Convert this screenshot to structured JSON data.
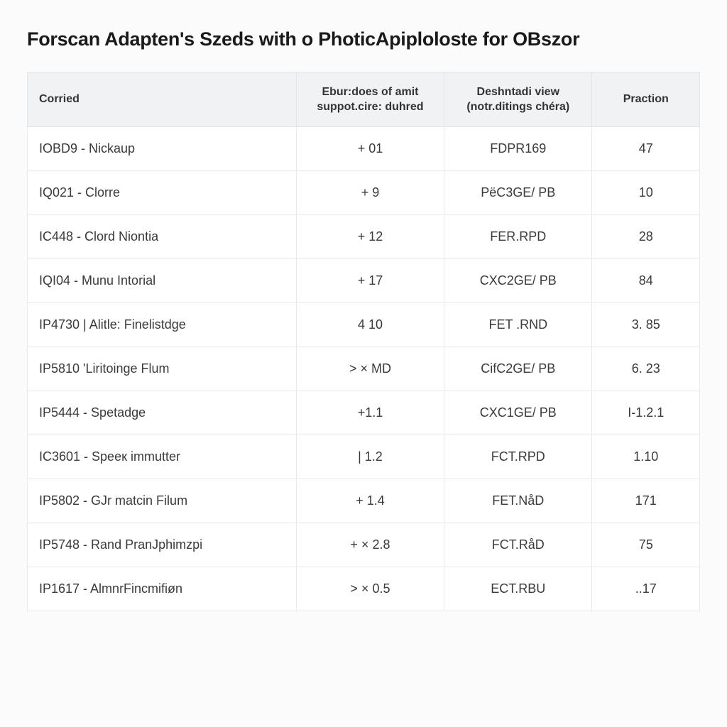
{
  "title": "Forscan Adapten's Szeds with o PhoticApiploloste for OBszor",
  "table": {
    "type": "table",
    "background_color": "#ffffff",
    "header_bg": "#f1f2f3",
    "border_color": "#e8eaec",
    "header_border_color": "#e2e4e6",
    "text_color": "#3a3a3a",
    "header_text_color": "#333333",
    "title_fontsize": 27,
    "header_fontsize": 16,
    "cell_fontsize": 18,
    "column_widths_pct": [
      40,
      22,
      22,
      16
    ],
    "column_alignment": [
      "left",
      "center",
      "center",
      "center"
    ],
    "columns": [
      {
        "label_line1": "Corried",
        "label_line2": ""
      },
      {
        "label_line1": "Ebur:does of amit",
        "label_line2": "suppot.cire: duhred"
      },
      {
        "label_line1": "Deshntadi view",
        "label_line2": "(notr.ditings chéra)"
      },
      {
        "label_line1": "Praction",
        "label_line2": ""
      }
    ],
    "rows": [
      {
        "c1": "IOBD9 - Nickaup",
        "c2": "+ 01",
        "c3": "FDPR169",
        "c4": "47"
      },
      {
        "c1": "IQ021 - Clorre",
        "c2": "+ 9",
        "c3": "PëC3GE/ PB",
        "c4": "10"
      },
      {
        "c1": "IC448 - Clord Niontia",
        "c2": "+ 12",
        "c3": "FER.RPD",
        "c4": "28"
      },
      {
        "c1": "IQI04 - Munu Intorial",
        "c2": "+ 17",
        "c3": "CXC2GE/ PB",
        "c4": "84"
      },
      {
        "c1": "IP4730 | Alitle: Finelistdge",
        "c2": "4 10",
        "c3": "FET .RND",
        "c4": "3. 85"
      },
      {
        "c1": "IP5810 'Liritoinge Flum",
        "c2": "> × MD",
        "c3": "CifC2GE/ PB",
        "c4": "6. 23"
      },
      {
        "c1": "IP5444 - Spetadge",
        "c2": "+1.1",
        "c3": "CXC1GE/ PB",
        "c4": "I-1.2.1"
      },
      {
        "c1": "IC3601 - Speeк immutter",
        "c2": "| 1.2",
        "c3": "FCT.RPD",
        "c4": "1.10"
      },
      {
        "c1": "IP5802 - GJr matcin Filum",
        "c2": "+ 1.4",
        "c3": "FET.NåD",
        "c4": "171"
      },
      {
        "c1": "IP5748 - Rand PranJphimzpi",
        "c2": "+ × 2.8",
        "c3": "FCT.RåD",
        "c4": "75"
      },
      {
        "c1": "IP1617 - AlmnrFincmifiøn",
        "c2": "> × 0.5",
        "c3": "ECT.RBU",
        "c4": "..17"
      }
    ]
  }
}
